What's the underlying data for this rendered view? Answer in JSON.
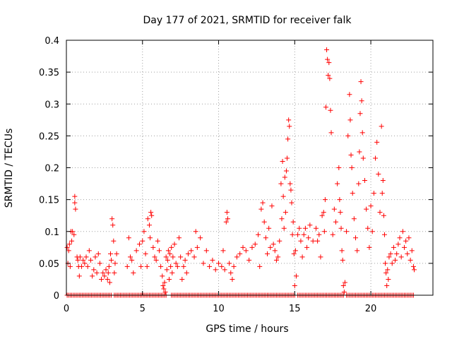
{
  "chart_data": {
    "type": "scatter",
    "title": "Day 177 of 2021, SRMTID for receiver falk",
    "xlabel": "GPS time / hours",
    "ylabel": "SRMTID / TECUs",
    "xlim": [
      0,
      24.08
    ],
    "ylim": [
      0,
      0.4
    ],
    "grid": true,
    "x_ticks": [
      0,
      5,
      10,
      15,
      20
    ],
    "x_tick_labels": [
      "0",
      "5",
      "10",
      "15",
      "20"
    ],
    "y_ticks": [
      0,
      0.05,
      0.1,
      0.15,
      0.2,
      0.25,
      0.3,
      0.35,
      0.4
    ],
    "y_tick_labels": [
      "0",
      "0.05",
      "0.1",
      "0.15",
      "0.2",
      "0.25",
      "0.3",
      "0.35",
      "0.4"
    ],
    "marker": "+",
    "marker_color": "#ff0000",
    "series": [
      {
        "name": "SRMTID",
        "points": [
          [
            0.05,
            0.075
          ],
          [
            0.1,
            0.05
          ],
          [
            0.15,
            0.07
          ],
          [
            0.2,
            0.08
          ],
          [
            0.25,
            0.045
          ],
          [
            0.3,
            0.1
          ],
          [
            0.35,
            0.085
          ],
          [
            0.4,
            0.1
          ],
          [
            0.5,
            0.095
          ],
          [
            0.55,
            0.155
          ],
          [
            0.55,
            0.145
          ],
          [
            0.6,
            0.135
          ],
          [
            0.7,
            0.06
          ],
          [
            0.75,
            0.055
          ],
          [
            0.8,
            0.045
          ],
          [
            0.85,
            0.03
          ],
          [
            0.9,
            0.06
          ],
          [
            1.0,
            0.045
          ],
          [
            1.1,
            0.055
          ],
          [
            1.2,
            0.05
          ],
          [
            1.3,
            0.06
          ],
          [
            1.4,
            0.045
          ],
          [
            1.5,
            0.07
          ],
          [
            1.6,
            0.055
          ],
          [
            1.7,
            0.03
          ],
          [
            1.8,
            0.04
          ],
          [
            1.9,
            0.06
          ],
          [
            2.0,
            0.035
          ],
          [
            2.1,
            0.065
          ],
          [
            2.2,
            0.05
          ],
          [
            2.3,
            0.025
          ],
          [
            2.4,
            0.035
          ],
          [
            2.5,
            0.03
          ],
          [
            2.6,
            0.04
          ],
          [
            2.7,
            0.025
          ],
          [
            2.75,
            0.035
          ],
          [
            2.8,
            0.045
          ],
          [
            2.85,
            0.02
          ],
          [
            2.9,
            0.065
          ],
          [
            2.95,
            0.055
          ],
          [
            3.0,
            0.12
          ],
          [
            3.05,
            0.11
          ],
          [
            3.1,
            0.085
          ],
          [
            3.15,
            0.035
          ],
          [
            3.2,
            0.05
          ],
          [
            3.3,
            0.065
          ],
          [
            4.0,
            0.045
          ],
          [
            4.1,
            0.09
          ],
          [
            4.2,
            0.06
          ],
          [
            4.3,
            0.055
          ],
          [
            4.4,
            0.035
          ],
          [
            4.6,
            0.07
          ],
          [
            4.8,
            0.08
          ],
          [
            4.9,
            0.045
          ],
          [
            5.0,
            0.085
          ],
          [
            5.1,
            0.1
          ],
          [
            5.2,
            0.065
          ],
          [
            5.3,
            0.045
          ],
          [
            5.35,
            0.12
          ],
          [
            5.45,
            0.11
          ],
          [
            5.5,
            0.09
          ],
          [
            5.55,
            0.13
          ],
          [
            5.6,
            0.125
          ],
          [
            5.7,
            0.075
          ],
          [
            5.8,
            0.06
          ],
          [
            5.9,
            0.055
          ],
          [
            6.0,
            0.085
          ],
          [
            6.1,
            0.07
          ],
          [
            6.2,
            0.045
          ],
          [
            6.3,
            0.03
          ],
          [
            6.35,
            0.015
          ],
          [
            6.4,
            0.01
          ],
          [
            6.45,
            0.02
          ],
          [
            6.5,
            0.005
          ],
          [
            6.55,
            0.06
          ],
          [
            6.6,
            0.04
          ],
          [
            6.65,
            0.055
          ],
          [
            6.7,
            0.07
          ],
          [
            6.75,
            0.025
          ],
          [
            6.8,
            0.065
          ],
          [
            6.85,
            0.045
          ],
          [
            6.9,
            0.075
          ],
          [
            6.95,
            0.035
          ],
          [
            7.0,
            0.06
          ],
          [
            7.1,
            0.08
          ],
          [
            7.2,
            0.05
          ],
          [
            7.3,
            0.045
          ],
          [
            7.4,
            0.09
          ],
          [
            7.5,
            0.06
          ],
          [
            7.6,
            0.025
          ],
          [
            7.7,
            0.045
          ],
          [
            7.8,
            0.055
          ],
          [
            7.9,
            0.035
          ],
          [
            8.0,
            0.065
          ],
          [
            8.2,
            0.07
          ],
          [
            8.4,
            0.06
          ],
          [
            8.5,
            0.1
          ],
          [
            8.6,
            0.075
          ],
          [
            8.8,
            0.09
          ],
          [
            9.0,
            0.05
          ],
          [
            9.2,
            0.07
          ],
          [
            9.4,
            0.045
          ],
          [
            9.6,
            0.055
          ],
          [
            9.8,
            0.04
          ],
          [
            10.0,
            0.05
          ],
          [
            10.2,
            0.045
          ],
          [
            10.3,
            0.07
          ],
          [
            10.4,
            0.04
          ],
          [
            10.5,
            0.115
          ],
          [
            10.55,
            0.13
          ],
          [
            10.6,
            0.12
          ],
          [
            10.7,
            0.05
          ],
          [
            10.8,
            0.035
          ],
          [
            10.9,
            0.025
          ],
          [
            11.0,
            0.045
          ],
          [
            11.2,
            0.06
          ],
          [
            11.4,
            0.065
          ],
          [
            11.6,
            0.075
          ],
          [
            11.8,
            0.07
          ],
          [
            12.0,
            0.055
          ],
          [
            12.2,
            0.075
          ],
          [
            12.4,
            0.08
          ],
          [
            12.6,
            0.095
          ],
          [
            12.7,
            0.045
          ],
          [
            12.8,
            0.135
          ],
          [
            12.9,
            0.145
          ],
          [
            13.0,
            0.115
          ],
          [
            13.1,
            0.09
          ],
          [
            13.2,
            0.065
          ],
          [
            13.3,
            0.105
          ],
          [
            13.4,
            0.075
          ],
          [
            13.5,
            0.14
          ],
          [
            13.6,
            0.08
          ],
          [
            13.7,
            0.07
          ],
          [
            13.8,
            0.055
          ],
          [
            13.9,
            0.06
          ],
          [
            14.0,
            0.085
          ],
          [
            14.1,
            0.175
          ],
          [
            14.15,
            0.12
          ],
          [
            14.2,
            0.21
          ],
          [
            14.25,
            0.155
          ],
          [
            14.3,
            0.105
          ],
          [
            14.35,
            0.185
          ],
          [
            14.4,
            0.13
          ],
          [
            14.45,
            0.195
          ],
          [
            14.5,
            0.215
          ],
          [
            14.55,
            0.245
          ],
          [
            14.6,
            0.275
          ],
          [
            14.65,
            0.265
          ],
          [
            14.7,
            0.175
          ],
          [
            14.75,
            0.165
          ],
          [
            14.8,
            0.145
          ],
          [
            14.85,
            0.095
          ],
          [
            14.9,
            0.115
          ],
          [
            14.95,
            0.065
          ],
          [
            15.0,
            0.015
          ],
          [
            15.05,
            0.07
          ],
          [
            15.1,
            0.03
          ],
          [
            15.2,
            0.095
          ],
          [
            15.3,
            0.105
          ],
          [
            15.4,
            0.085
          ],
          [
            15.5,
            0.06
          ],
          [
            15.6,
            0.095
          ],
          [
            15.7,
            0.105
          ],
          [
            15.8,
            0.075
          ],
          [
            15.9,
            0.09
          ],
          [
            16.0,
            0.11
          ],
          [
            16.2,
            0.085
          ],
          [
            16.4,
            0.105
          ],
          [
            16.5,
            0.085
          ],
          [
            16.6,
            0.095
          ],
          [
            16.7,
            0.06
          ],
          [
            16.8,
            0.125
          ],
          [
            16.9,
            0.13
          ],
          [
            16.95,
            0.1
          ],
          [
            17.0,
            0.15
          ],
          [
            17.05,
            0.295
          ],
          [
            17.1,
            0.385
          ],
          [
            17.15,
            0.37
          ],
          [
            17.2,
            0.345
          ],
          [
            17.25,
            0.365
          ],
          [
            17.3,
            0.34
          ],
          [
            17.35,
            0.29
          ],
          [
            17.4,
            0.255
          ],
          [
            17.5,
            0.095
          ],
          [
            17.6,
            0.135
          ],
          [
            17.7,
            0.115
          ],
          [
            17.8,
            0.175
          ],
          [
            17.9,
            0.2
          ],
          [
            17.95,
            0.15
          ],
          [
            18.0,
            0.13
          ],
          [
            18.05,
            0.105
          ],
          [
            18.1,
            0.07
          ],
          [
            18.15,
            0.055
          ],
          [
            18.2,
            0.015
          ],
          [
            18.25,
            0.005
          ],
          [
            18.3,
            0.02
          ],
          [
            18.4,
            0.1
          ],
          [
            18.5,
            0.25
          ],
          [
            18.6,
            0.315
          ],
          [
            18.65,
            0.275
          ],
          [
            18.7,
            0.22
          ],
          [
            18.75,
            0.2
          ],
          [
            18.8,
            0.16
          ],
          [
            18.9,
            0.12
          ],
          [
            19.0,
            0.09
          ],
          [
            19.1,
            0.07
          ],
          [
            19.2,
            0.175
          ],
          [
            19.25,
            0.225
          ],
          [
            19.3,
            0.285
          ],
          [
            19.35,
            0.335
          ],
          [
            19.4,
            0.305
          ],
          [
            19.45,
            0.255
          ],
          [
            19.5,
            0.215
          ],
          [
            19.6,
            0.18
          ],
          [
            19.7,
            0.135
          ],
          [
            19.8,
            0.105
          ],
          [
            19.9,
            0.075
          ],
          [
            20.0,
            0.14
          ],
          [
            20.1,
            0.1
          ],
          [
            20.2,
            0.16
          ],
          [
            20.3,
            0.215
          ],
          [
            20.4,
            0.24
          ],
          [
            20.5,
            0.19
          ],
          [
            20.6,
            0.13
          ],
          [
            20.7,
            0.265
          ],
          [
            20.75,
            0.16
          ],
          [
            20.8,
            0.18
          ],
          [
            20.85,
            0.125
          ],
          [
            20.9,
            0.095
          ],
          [
            20.95,
            0.05
          ],
          [
            21.0,
            0.035
          ],
          [
            21.05,
            0.015
          ],
          [
            21.1,
            0.04
          ],
          [
            21.15,
            0.025
          ],
          [
            21.2,
            0.06
          ],
          [
            21.3,
            0.065
          ],
          [
            21.4,
            0.05
          ],
          [
            21.5,
            0.075
          ],
          [
            21.6,
            0.055
          ],
          [
            21.7,
            0.065
          ],
          [
            21.8,
            0.08
          ],
          [
            21.9,
            0.09
          ],
          [
            22.0,
            0.06
          ],
          [
            22.1,
            0.1
          ],
          [
            22.2,
            0.075
          ],
          [
            22.3,
            0.085
          ],
          [
            22.4,
            0.065
          ],
          [
            22.5,
            0.09
          ],
          [
            22.6,
            0.055
          ],
          [
            22.7,
            0.07
          ],
          [
            22.8,
            0.045
          ],
          [
            22.85,
            0.04
          ]
        ],
        "zero_ranges": [
          [
            0.05,
            3.0
          ],
          [
            3.15,
            6.55
          ],
          [
            6.9,
            15.05
          ],
          [
            15.2,
            18.2
          ],
          [
            18.4,
            22.8
          ]
        ]
      }
    ]
  }
}
